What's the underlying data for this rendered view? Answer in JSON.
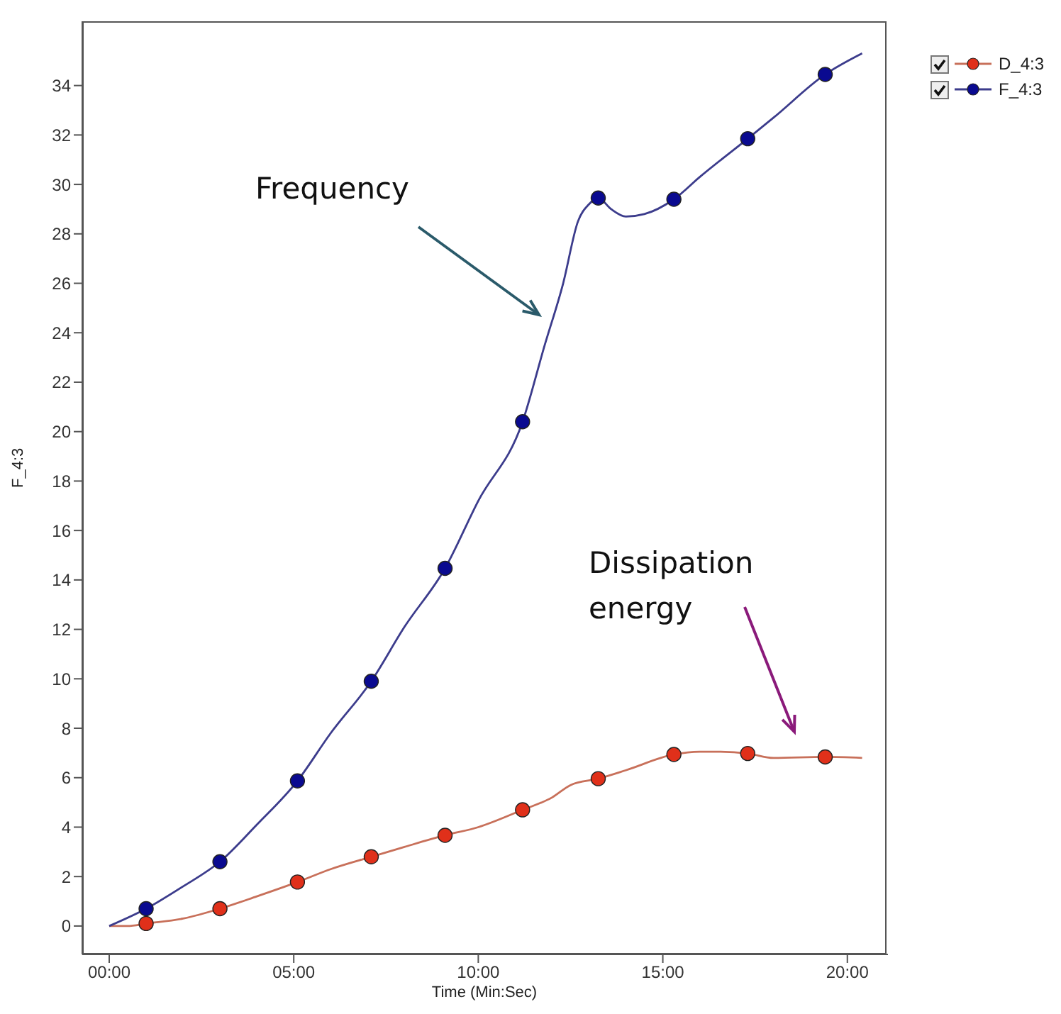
{
  "chart_data": {
    "type": "line",
    "xlabel": "Time (Min:Sec)",
    "ylabel": "F_4:3",
    "xlim": [
      -0.73,
      21.1
    ],
    "ylim": [
      -1.15,
      36.6
    ],
    "xticks": [
      {
        "value": 0,
        "label": "00:00"
      },
      {
        "value": 5,
        "label": "05:00"
      },
      {
        "value": 10,
        "label": "10:00"
      },
      {
        "value": 15,
        "label": "15:00"
      },
      {
        "value": 20,
        "label": "20:00"
      }
    ],
    "yticks": [
      0,
      2,
      4,
      6,
      8,
      10,
      12,
      14,
      16,
      18,
      20,
      22,
      24,
      26,
      28,
      30,
      32,
      34
    ],
    "grid": false,
    "legend": "top right",
    "marker": "circle",
    "series": [
      {
        "name": "D_4:3",
        "marker": "none",
        "color": "#c8705a",
        "x": [
          0,
          0.5,
          1,
          2,
          3,
          4,
          5.1,
          6,
          7.1,
          8,
          9.1,
          10,
          11.2,
          12,
          12.5,
          13.25,
          14,
          15.3,
          16,
          16.5,
          17.3,
          18,
          19.4,
          20.4
        ],
        "values": [
          0,
          0,
          0.1,
          0.3,
          0.7,
          1.2,
          1.78,
          2.3,
          2.8,
          3.2,
          3.67,
          4.0,
          4.7,
          5.2,
          5.7,
          5.96,
          6.3,
          6.94,
          7.05,
          7.05,
          6.98,
          6.8,
          6.84,
          6.8
        ]
      },
      {
        "name": "F_4:3",
        "marker": "none",
        "color": "#3c3c8c",
        "x": [
          0,
          1,
          2,
          3,
          4,
          5.1,
          6,
          7.1,
          8,
          9.1,
          10,
          11.2,
          11.8,
          12.3,
          12.7,
          13,
          13.25,
          13.6,
          14,
          14.5,
          15.3,
          16,
          17.3,
          18,
          19.4,
          20.4
        ],
        "values": [
          0,
          0.7,
          1.6,
          2.6,
          4.1,
          5.87,
          7.8,
          9.9,
          12.1,
          14.47,
          17.2,
          20.4,
          23.5,
          26,
          28.5,
          29.2,
          29.45,
          29.0,
          28.7,
          28.8,
          29.4,
          30.3,
          31.85,
          32.7,
          34.45,
          35.3
        ]
      },
      {
        "type": "scatter",
        "color": "#e0301a",
        "x": [
          1,
          3,
          5.1,
          7.1,
          9.1,
          11.2,
          13.25,
          15.3,
          17.3,
          19.4
        ],
        "values": [
          0.1,
          0.7,
          1.78,
          2.8,
          3.67,
          4.7,
          5.96,
          6.94,
          6.98,
          6.84
        ]
      },
      {
        "type": "scatter",
        "color": "#0a0a90",
        "x": [
          1,
          3,
          5.1,
          7.1,
          9.1,
          11.2,
          13.25,
          15.3,
          17.3,
          19.4
        ],
        "values": [
          0.7,
          2.6,
          5.87,
          9.9,
          14.47,
          20.4,
          29.45,
          29.4,
          31.85,
          34.45
        ]
      }
    ],
    "annotations": [
      "Frequency",
      "Dissipation energy"
    ]
  }
}
